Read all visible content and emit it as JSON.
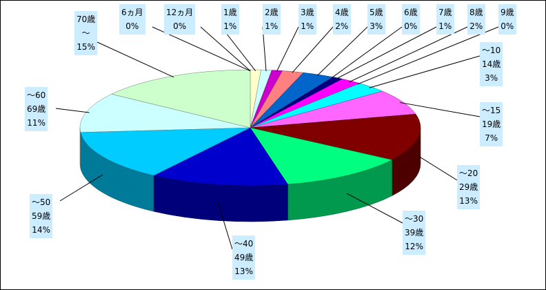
{
  "chart_data": {
    "type": "pie",
    "categories": [
      "6ヵ月",
      "12ヵ月",
      "1歳",
      "2歳",
      "3歳",
      "4歳",
      "5歳",
      "6歳",
      "7歳",
      "8歳",
      "9歳",
      "～10\n14歳",
      "～15\n19歳",
      "～20\n29歳",
      "～30\n39歳",
      "～40\n49歳",
      "～50\n59歳",
      "～60\n69歳",
      "70歳\n～"
    ],
    "values": [
      0,
      0,
      1,
      1,
      1,
      2,
      3,
      0,
      1,
      2,
      0,
      3,
      7,
      13,
      12,
      13,
      14,
      11,
      15
    ],
    "value_labels": [
      "0%",
      "0%",
      "1%",
      "1%",
      "1%",
      "2%",
      "3%",
      "0%",
      "1%",
      "2%",
      "0%",
      "3%",
      "7%",
      "13%",
      "12%",
      "13%",
      "14%",
      "11%",
      "15%"
    ],
    "colors": [
      "#9999ff",
      "#993366",
      "#ffffcc",
      "#ccffff",
      "#cc00cc",
      "#ff8080",
      "#0066cc",
      "#ccccff",
      "#000080",
      "#ff00ff",
      "#ffff00",
      "#00ffff",
      "#ff66ff",
      "#800000",
      "#00ff80",
      "#0000cc",
      "#00ccff",
      "#ccffff",
      "#ccffcc"
    ]
  }
}
